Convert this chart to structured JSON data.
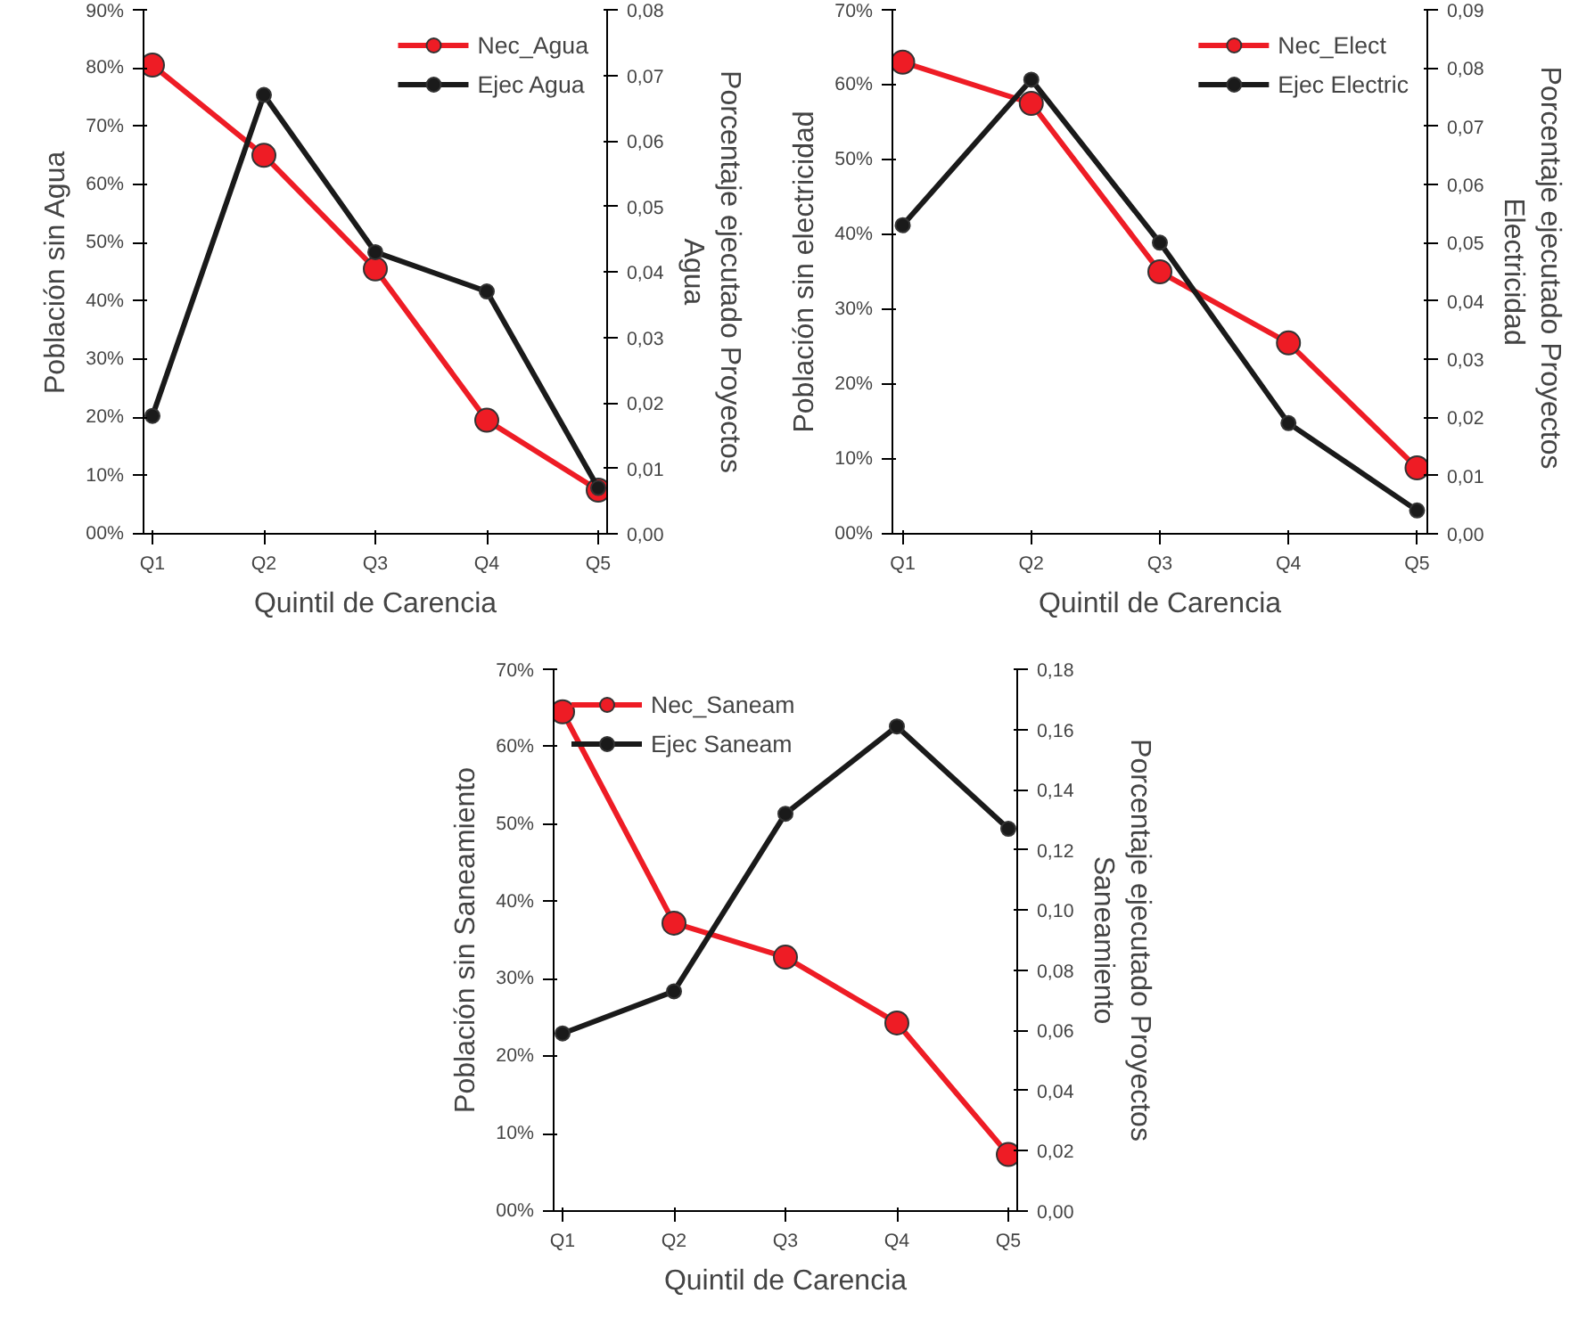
{
  "chart_data": [
    {
      "type": "line",
      "categories": [
        "Q1",
        "Q2",
        "Q3",
        "Q4",
        "Q5"
      ],
      "xlabel": "Quintil de Carencia",
      "ylabel": "Población sin Agua",
      "y2label": "Porcentaje ejecutado Proyectos Agua",
      "marker": "circle",
      "legend": "top right",
      "grid": false,
      "ylim": [
        0,
        90
      ],
      "yticks": [
        {
          "value": 0,
          "label": "00%"
        },
        {
          "value": 10,
          "label": "10%"
        },
        {
          "value": 20,
          "label": "20%"
        },
        {
          "value": 30,
          "label": "30%"
        },
        {
          "value": 40,
          "label": "40%"
        },
        {
          "value": 50,
          "label": "50%"
        },
        {
          "value": 60,
          "label": "60%"
        },
        {
          "value": 70,
          "label": "70%"
        },
        {
          "value": 80,
          "label": "80%"
        },
        {
          "value": 90,
          "label": "90%"
        }
      ],
      "y2lim": [
        0,
        0.08
      ],
      "y2ticks": [
        {
          "value": 0,
          "label": "0,00"
        },
        {
          "value": 0.01,
          "label": "0,01"
        },
        {
          "value": 0.02,
          "label": "0,02"
        },
        {
          "value": 0.03,
          "label": "0,03"
        },
        {
          "value": 0.04,
          "label": "0,04"
        },
        {
          "value": 0.05,
          "label": "0,05"
        },
        {
          "value": 0.06,
          "label": "0,06"
        },
        {
          "value": 0.07,
          "label": "0,07"
        },
        {
          "value": 0.08,
          "label": "0,08"
        }
      ],
      "series": [
        {
          "name": "Nec_Agua",
          "color": "#ee1c25",
          "values": [
            80.5,
            65,
            45.5,
            19.5,
            7.5
          ]
        },
        {
          "name": "Ejec Agua",
          "color": "#1a1a1a",
          "axis": "y2",
          "values": [
            0.018,
            0.067,
            0.043,
            0.037,
            0.007
          ]
        }
      ]
    },
    {
      "type": "line",
      "categories": [
        "Q1",
        "Q2",
        "Q3",
        "Q4",
        "Q5"
      ],
      "xlabel": "Quintil de Carencia",
      "ylabel": "Población sin electricidad",
      "y2label": "Porcentaje ejecutado  Proyectos Electricidad",
      "marker": "circle",
      "legend": "top right",
      "grid": false,
      "ylim": [
        0,
        70
      ],
      "yticks": [
        {
          "value": 0,
          "label": "00%"
        },
        {
          "value": 10,
          "label": "10%"
        },
        {
          "value": 20,
          "label": "20%"
        },
        {
          "value": 30,
          "label": "30%"
        },
        {
          "value": 40,
          "label": "40%"
        },
        {
          "value": 50,
          "label": "50%"
        },
        {
          "value": 60,
          "label": "60%"
        },
        {
          "value": 70,
          "label": "70%"
        }
      ],
      "y2lim": [
        0,
        0.09
      ],
      "y2ticks": [
        {
          "value": 0,
          "label": "0,00"
        },
        {
          "value": 0.01,
          "label": "0,01"
        },
        {
          "value": 0.02,
          "label": "0,02"
        },
        {
          "value": 0.03,
          "label": "0,03"
        },
        {
          "value": 0.04,
          "label": "0,04"
        },
        {
          "value": 0.05,
          "label": "0,05"
        },
        {
          "value": 0.06,
          "label": "0,06"
        },
        {
          "value": 0.07,
          "label": "0,07"
        },
        {
          "value": 0.08,
          "label": "0,08"
        },
        {
          "value": 0.09,
          "label": "0,09"
        }
      ],
      "series": [
        {
          "name": "Nec_Elect",
          "color": "#ee1c25",
          "values": [
            63,
            57.5,
            35,
            25.5,
            8.8
          ]
        },
        {
          "name": "Ejec Electric",
          "color": "#1a1a1a",
          "axis": "y2",
          "values": [
            0.053,
            0.078,
            0.05,
            0.019,
            0.004
          ]
        }
      ]
    },
    {
      "type": "line",
      "categories": [
        "Q1",
        "Q2",
        "Q3",
        "Q4",
        "Q5"
      ],
      "xlabel": "Quintil de Carencia",
      "ylabel": "Población sin Saneamiento",
      "y2label": "Porcentaje ejecutado Proyectos Saneamiento",
      "marker": "circle",
      "legend": "top left",
      "grid": false,
      "ylim": [
        0,
        70
      ],
      "yticks": [
        {
          "value": 0,
          "label": "00%"
        },
        {
          "value": 10,
          "label": "10%"
        },
        {
          "value": 20,
          "label": "20%"
        },
        {
          "value": 30,
          "label": "30%"
        },
        {
          "value": 40,
          "label": "40%"
        },
        {
          "value": 50,
          "label": "50%"
        },
        {
          "value": 60,
          "label": "60%"
        },
        {
          "value": 70,
          "label": "70%"
        }
      ],
      "y2lim": [
        0,
        0.18
      ],
      "y2ticks": [
        {
          "value": 0,
          "label": "0,00"
        },
        {
          "value": 0.02,
          "label": "0,02"
        },
        {
          "value": 0.04,
          "label": "0,04"
        },
        {
          "value": 0.06,
          "label": "0,06"
        },
        {
          "value": 0.08,
          "label": "0,08"
        },
        {
          "value": 0.1,
          "label": "0,10"
        },
        {
          "value": 0.12,
          "label": "0,12"
        },
        {
          "value": 0.14,
          "label": "0,14"
        },
        {
          "value": 0.16,
          "label": "0,16"
        },
        {
          "value": 0.18,
          "label": "0,18"
        }
      ],
      "series": [
        {
          "name": "Nec_Saneam",
          "color": "#ee1c25",
          "values": [
            64.5,
            37.2,
            32.8,
            24.3,
            7.3
          ]
        },
        {
          "name": "Ejec Saneam",
          "color": "#1a1a1a",
          "axis": "y2",
          "values": [
            0.059,
            0.073,
            0.132,
            0.161,
            0.127
          ]
        }
      ]
    }
  ]
}
